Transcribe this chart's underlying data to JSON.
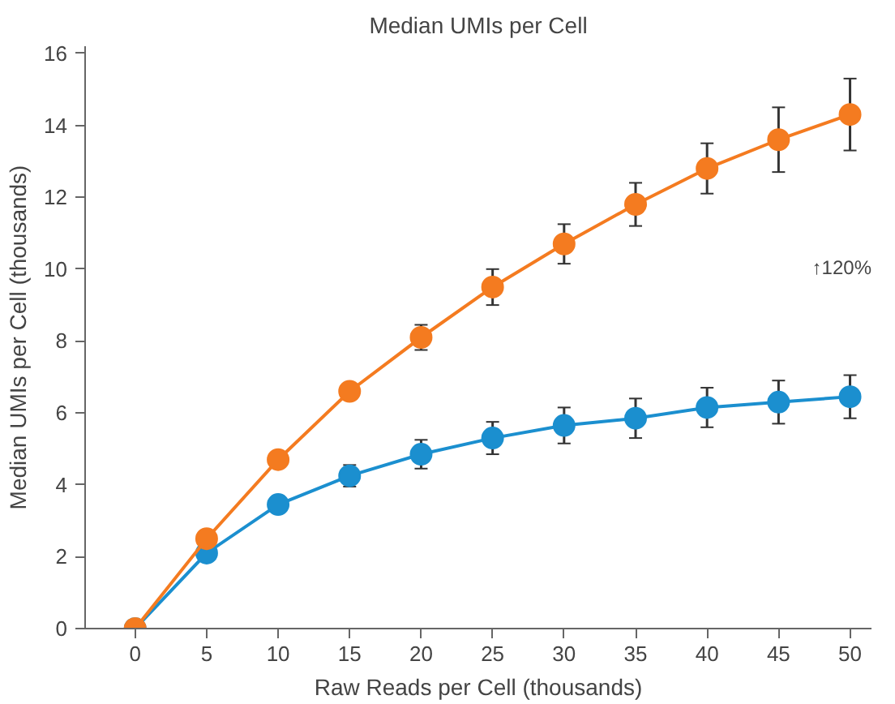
{
  "chart_data": {
    "type": "line",
    "title": "Median UMIs per Cell",
    "xlabel": "Raw Reads per Cell (thousands)",
    "ylabel": "Median UMIs per Cell (thousands)",
    "x": [
      0,
      5,
      10,
      15,
      20,
      25,
      30,
      35,
      40,
      45,
      50
    ],
    "series": [
      {
        "color": "#1b8fcf",
        "values": [
          0,
          2.1,
          3.45,
          4.25,
          4.85,
          5.3,
          5.65,
          5.85,
          6.15,
          6.3,
          6.45
        ],
        "errors": [
          null,
          null,
          null,
          0.3,
          0.4,
          0.45,
          0.5,
          0.55,
          0.55,
          0.6,
          0.6
        ]
      },
      {
        "color": "#f47b20",
        "values": [
          0,
          2.5,
          4.7,
          6.6,
          8.1,
          9.5,
          10.7,
          11.8,
          12.8,
          13.6,
          14.3
        ],
        "errors": [
          null,
          null,
          null,
          null,
          0.35,
          0.5,
          0.55,
          0.6,
          0.7,
          0.9,
          1.0
        ]
      }
    ],
    "xlim": [
      -3.5,
      51.5
    ],
    "ylim": [
      0,
      16.2
    ],
    "xticks": [
      0,
      5,
      10,
      15,
      20,
      25,
      30,
      35,
      40,
      45,
      50
    ],
    "yticks": [
      0,
      2,
      4,
      6,
      8,
      10,
      12,
      14,
      16
    ],
    "grid": false,
    "marker": "circle",
    "line_style": "solid",
    "annotations": [
      "↑120%"
    ]
  }
}
